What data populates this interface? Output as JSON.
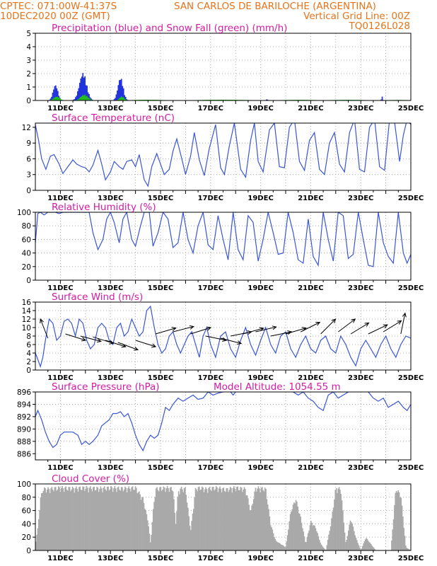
{
  "header": {
    "left_line1": "CPTEC:  071:00W-41:37S",
    "location": "SAN CARLOS DE BARILOCHE (ARGENTINA)",
    "left_line2": "10DEC2020 00Z (GMT)",
    "grid_note": "Vertical Grid Line: 00Z",
    "code": "TQ0126L028"
  },
  "colors": {
    "header": "#e8731a",
    "title": "#d61aa5",
    "line": "#3a55d6",
    "precip": "#2233dd",
    "snow": "#22bb22",
    "cloud": "#a9a9a9",
    "arrow": "#000000"
  },
  "chart_data": [
    {
      "id": "precipitation",
      "type": "bar",
      "title": "Precipitation (blue) and Snow Fall (green) (mm/h)",
      "ylim": [
        0,
        5
      ],
      "yticks": [
        "0",
        "1",
        "2",
        "3",
        "4",
        "5"
      ],
      "xticks": [
        "11DEC",
        "13DEC",
        "15DEC",
        "17DEC",
        "19DEC",
        "21DEC",
        "23DEC",
        "25DEC"
      ],
      "series": [
        {
          "name": "Precipitation (blue)",
          "peaks": [
            [
              0.8,
              0.2,
              1.2
            ],
            [
              1.9,
              0.3,
              2.1
            ],
            [
              3.4,
              0.22,
              1.75
            ],
            [
              9.25,
              0.06,
              0.1
            ],
            [
              13.85,
              0.05,
              0.3
            ]
          ]
        },
        {
          "name": "Snow Fall (green)",
          "peaks": [
            [
              0.85,
              0.25,
              0.3
            ],
            [
              1.95,
              0.3,
              0.45
            ],
            [
              3.45,
              0.2,
              0.3
            ],
            [
              4.5,
              1.2,
              0.06
            ],
            [
              7.5,
              2.0,
              0.06
            ],
            [
              10.5,
              1.5,
              0.05
            ],
            [
              12.5,
              1.5,
              0.05
            ],
            [
              14.5,
              1.2,
              0.04
            ]
          ]
        }
      ]
    },
    {
      "id": "temperature",
      "type": "line",
      "title": "Surface Temperature (nC)",
      "ylim": [
        0,
        12.8
      ],
      "yticks": [
        "0",
        "3",
        "6",
        "9",
        "12"
      ],
      "xticks": [
        "11DEC",
        "13DEC",
        "15DEC",
        "17DEC",
        "19DEC",
        "21DEC",
        "23DEC",
        "25DEC"
      ],
      "t": [
        0,
        0.13,
        0.25,
        0.42,
        0.6,
        0.75,
        0.95,
        1.1,
        1.3,
        1.5,
        1.65,
        1.85,
        2.0,
        2.15,
        2.3,
        2.5,
        2.65,
        2.8,
        3.0,
        3.15,
        3.35,
        3.5,
        3.65,
        3.85,
        4.0,
        4.15,
        4.35,
        4.5,
        4.65,
        4.85,
        5.0,
        5.15,
        5.35,
        5.5,
        5.65,
        5.85,
        6.0,
        6.2,
        6.35,
        6.55,
        6.75,
        6.95,
        7.2,
        7.4,
        7.55,
        7.75,
        7.95,
        8.2,
        8.4,
        8.6,
        8.75,
        8.9,
        9.1,
        9.35,
        9.55,
        9.75,
        9.95,
        10.15,
        10.35,
        10.55,
        10.75,
        10.95,
        11.15,
        11.35,
        11.55,
        11.75,
        11.95,
        12.15,
        12.35,
        12.55,
        12.75,
        12.95,
        13.15,
        13.35,
        13.55,
        13.75,
        13.95,
        14.15,
        14.35,
        14.55,
        14.7,
        14.85,
        15.0
      ],
      "values": [
        12.5,
        9.5,
        6.0,
        4.0,
        6.5,
        6.8,
        5.0,
        3.2,
        4.5,
        5.8,
        5.0,
        4.5,
        4.3,
        3.5,
        4.8,
        7.6,
        5.0,
        2.0,
        3.5,
        5.5,
        4.5,
        4.0,
        5.5,
        5.8,
        4.5,
        6.8,
        2.0,
        0.8,
        4.5,
        7.0,
        5.0,
        3.0,
        4.0,
        7.5,
        9.8,
        6.0,
        3.0,
        6.5,
        11.0,
        5.8,
        2.8,
        8.0,
        12.5,
        4.3,
        3.0,
        8.5,
        12.8,
        4.0,
        2.5,
        9.5,
        12.8,
        5.5,
        3.5,
        11.5,
        12.8,
        4.5,
        4.3,
        12.0,
        13.5,
        5.5,
        3.8,
        9.5,
        11.0,
        4.0,
        3.0,
        9.0,
        11.0,
        5.0,
        3.5,
        11.0,
        13.5,
        4.0,
        3.5,
        12.0,
        13.5,
        4.5,
        3.8,
        13.5,
        13.0,
        5.5,
        10.5,
        13.5,
        12.5
      ]
    },
    {
      "id": "humidity",
      "type": "line",
      "title": "Relative Humidity (%)",
      "ylim": [
        0,
        100
      ],
      "yticks": [
        "0",
        "20",
        "40",
        "60",
        "80",
        "100"
      ],
      "xticks": [
        "11DEC",
        "13DEC",
        "15DEC",
        "17DEC",
        "19DEC",
        "21DEC",
        "23DEC",
        "25DEC"
      ],
      "t": [
        0,
        0.1,
        0.2,
        0.35,
        0.5,
        0.65,
        0.8,
        0.95,
        1.1,
        1.25,
        1.4,
        1.55,
        1.7,
        1.85,
        2.0,
        2.15,
        2.3,
        2.5,
        2.7,
        2.85,
        3.0,
        3.15,
        3.35,
        3.5,
        3.65,
        3.85,
        4.0,
        4.2,
        4.35,
        4.55,
        4.7,
        4.9,
        5.1,
        5.3,
        5.5,
        5.7,
        5.9,
        6.1,
        6.3,
        6.5,
        6.7,
        6.9,
        7.1,
        7.3,
        7.5,
        7.7,
        7.9,
        8.1,
        8.3,
        8.5,
        8.7,
        8.9,
        9.1,
        9.3,
        9.5,
        9.7,
        9.9,
        10.1,
        10.3,
        10.5,
        10.7,
        10.9,
        11.1,
        11.3,
        11.5,
        11.7,
        11.9,
        12.1,
        12.3,
        12.5,
        12.7,
        12.9,
        13.1,
        13.3,
        13.5,
        13.7,
        13.9,
        14.1,
        14.3,
        14.5,
        14.7,
        14.85,
        15.0
      ],
      "values": [
        55,
        98,
        100,
        96,
        100,
        100,
        100,
        98,
        100,
        100,
        100,
        100,
        100,
        100,
        100,
        100,
        70,
        45,
        60,
        90,
        100,
        85,
        55,
        90,
        100,
        60,
        50,
        80,
        100,
        100,
        50,
        70,
        100,
        90,
        48,
        55,
        100,
        60,
        40,
        80,
        100,
        52,
        45,
        95,
        60,
        30,
        100,
        45,
        30,
        95,
        85,
        28,
        60,
        100,
        70,
        38,
        40,
        100,
        70,
        30,
        25,
        90,
        35,
        22,
        100,
        60,
        28,
        100,
        95,
        32,
        38,
        100,
        60,
        22,
        20,
        100,
        55,
        35,
        25,
        100,
        40,
        25,
        38
      ]
    },
    {
      "id": "wind",
      "type": "line",
      "title": "Surface Wind (m/s)",
      "ylim": [
        0,
        16
      ],
      "yticks": [
        "0",
        "2",
        "4",
        "6",
        "8",
        "10",
        "12",
        "14",
        "16"
      ],
      "xticks": [
        "11DEC",
        "13DEC",
        "15DEC",
        "17DEC",
        "19DEC",
        "21DEC",
        "23DEC",
        "25DEC"
      ],
      "t": [
        0,
        0.1,
        0.2,
        0.3,
        0.4,
        0.55,
        0.7,
        0.85,
        1.0,
        1.15,
        1.3,
        1.45,
        1.6,
        1.75,
        1.9,
        2.05,
        2.2,
        2.35,
        2.5,
        2.65,
        2.8,
        2.95,
        3.1,
        3.25,
        3.4,
        3.55,
        3.7,
        3.85,
        4.0,
        4.15,
        4.3,
        4.45,
        4.6,
        4.75,
        4.9,
        5.05,
        5.2,
        5.35,
        5.5,
        5.65,
        5.8,
        5.95,
        6.1,
        6.25,
        6.4,
        6.55,
        6.7,
        6.85,
        7.0,
        7.2,
        7.4,
        7.6,
        7.8,
        8.0,
        8.2,
        8.4,
        8.6,
        8.8,
        9.0,
        9.2,
        9.4,
        9.6,
        9.8,
        10.0,
        10.2,
        10.4,
        10.6,
        10.8,
        11.0,
        11.2,
        11.4,
        11.6,
        11.8,
        12.0,
        12.2,
        12.4,
        12.6,
        12.8,
        13.0,
        13.2,
        13.4,
        13.6,
        13.8,
        14.0,
        14.2,
        14.4,
        14.6,
        14.8,
        15.0
      ],
      "values": [
        4,
        2.5,
        0.8,
        3,
        7,
        12,
        11,
        7,
        8,
        11.5,
        12,
        11,
        8,
        12,
        11,
        7,
        5,
        6,
        10,
        11,
        10,
        7,
        6,
        10,
        11,
        8,
        9,
        12,
        10,
        8,
        9,
        14,
        15,
        10,
        6,
        4,
        5,
        8,
        9,
        6,
        4,
        6,
        8,
        9,
        6,
        3,
        8,
        10,
        6,
        3,
        8,
        9,
        5,
        3,
        7,
        10,
        6,
        3.5,
        7,
        10,
        6,
        4,
        8,
        9,
        5,
        3,
        6,
        8,
        5,
        4,
        7,
        8,
        5,
        4,
        8,
        6,
        3,
        1,
        5,
        7,
        5,
        3,
        6,
        8,
        5,
        3,
        6,
        8,
        7.5
      ],
      "arrows": [
        [
          0.5,
          7.5,
          -0.35,
          0.9
        ],
        [
          1.2,
          8.5,
          0.95,
          -0.3
        ],
        [
          1.8,
          8.0,
          0.97,
          -0.25
        ],
        [
          2.3,
          7.8,
          0.96,
          -0.3
        ],
        [
          2.8,
          7.0,
          0.95,
          -0.3
        ],
        [
          3.3,
          6.5,
          0.94,
          -0.35
        ],
        [
          4.0,
          7.0,
          0.95,
          -0.3
        ],
        [
          4.8,
          8.5,
          0.96,
          0.28
        ],
        [
          5.5,
          9.0,
          0.97,
          0.25
        ],
        [
          6.2,
          8.5,
          0.95,
          0.3
        ],
        [
          6.8,
          8.0,
          0.98,
          -0.2
        ],
        [
          7.4,
          7.5,
          0.97,
          -0.25
        ],
        [
          7.8,
          8.0,
          0.98,
          0.2
        ],
        [
          8.3,
          8.5,
          0.96,
          0.27
        ],
        [
          8.8,
          9.0,
          0.97,
          0.23
        ],
        [
          9.4,
          8.0,
          0.98,
          0.2
        ],
        [
          10.0,
          8.5,
          0.96,
          0.28
        ],
        [
          10.6,
          9.0,
          0.9,
          0.45
        ],
        [
          11.4,
          8.5,
          0.7,
          0.7
        ],
        [
          12.1,
          9.0,
          0.8,
          0.6
        ],
        [
          12.6,
          8.5,
          0.85,
          0.52
        ],
        [
          13.3,
          8.5,
          0.9,
          0.43
        ],
        [
          13.9,
          9.0,
          0.85,
          0.52
        ],
        [
          14.6,
          8.5,
          0.2,
          0.98
        ]
      ]
    },
    {
      "id": "pressure",
      "type": "line",
      "title": "Surface Pressure (hPa)",
      "annotation": "Model Altitude: 1054.55 m",
      "ylim": [
        885,
        896
      ],
      "yticks": [
        "886",
        "888",
        "890",
        "892",
        "894",
        "896"
      ],
      "xticks": [
        "11DEC",
        "13DEC",
        "15DEC",
        "17DEC",
        "19DEC",
        "21DEC",
        "23DEC",
        "25DEC"
      ],
      "t": [
        0,
        0.1,
        0.25,
        0.4,
        0.55,
        0.7,
        0.85,
        1.0,
        1.15,
        1.3,
        1.5,
        1.7,
        1.85,
        2.0,
        2.15,
        2.3,
        2.5,
        2.65,
        2.8,
        2.95,
        3.1,
        3.25,
        3.4,
        3.55,
        3.7,
        3.85,
        4.0,
        4.15,
        4.3,
        4.45,
        4.6,
        4.75,
        4.9,
        5.05,
        5.2,
        5.35,
        5.5,
        5.7,
        5.9,
        6.1,
        6.3,
        6.5,
        6.7,
        6.9,
        7.1,
        7.3,
        7.5,
        7.7,
        7.9,
        8.1,
        8.3,
        8.5,
        8.7,
        8.9,
        9.1,
        9.3,
        9.5,
        9.7,
        9.9,
        10.1,
        10.3,
        10.5,
        10.7,
        10.9,
        11.1,
        11.3,
        11.5,
        11.7,
        11.9,
        12.1,
        12.3,
        12.5,
        12.7,
        12.9,
        13.1,
        13.3,
        13.5,
        13.7,
        13.9,
        14.1,
        14.3,
        14.5,
        14.7,
        14.85,
        15.0
      ],
      "values": [
        892,
        893,
        891.5,
        889.5,
        888,
        887,
        887.5,
        889,
        889.5,
        889.5,
        889.5,
        889,
        887.5,
        888,
        887.5,
        888,
        889,
        890.5,
        891,
        891.5,
        892.5,
        892.5,
        892.8,
        892,
        892.5,
        891,
        889,
        887.5,
        886.5,
        888,
        889,
        888.5,
        889,
        891,
        893.5,
        893,
        894,
        895,
        894.5,
        895,
        895.5,
        894.8,
        895,
        896,
        895.5,
        895.8,
        896,
        896.5,
        895.5,
        896.5,
        896,
        897,
        896.5,
        896,
        897,
        896.5,
        897,
        897,
        897,
        897,
        896,
        895.5,
        896,
        895,
        894.5,
        893.5,
        893,
        895.5,
        896,
        895,
        895.5,
        896,
        897,
        897,
        896.5,
        896,
        895,
        894.5,
        895,
        893.5,
        894,
        894.5,
        893.5,
        893,
        894
      ]
    },
    {
      "id": "cloud",
      "type": "area",
      "title": "Cloud Cover (%)",
      "ylim": [
        0,
        100
      ],
      "yticks": [
        "0",
        "20",
        "40",
        "60",
        "80",
        "100"
      ],
      "xticks": [
        "11DEC",
        "13DEC",
        "15DEC",
        "17DEC",
        "19DEC",
        "21DEC",
        "23DEC",
        "25DEC"
      ],
      "t": [
        0,
        0.1,
        0.2,
        0.3,
        0.5,
        1.0,
        1.5,
        2.0,
        2.5,
        3.0,
        3.5,
        4.0,
        4.3,
        4.5,
        4.6,
        4.7,
        4.8,
        5.0,
        5.3,
        5.5,
        5.6,
        5.7,
        5.8,
        6.0,
        6.2,
        6.4,
        6.6,
        6.8,
        7.0,
        7.2,
        7.4,
        7.6,
        7.8,
        8.0,
        8.2,
        8.4,
        8.6,
        8.8,
        9.0,
        9.2,
        9.4,
        9.6,
        9.8,
        10.0,
        10.2,
        10.4,
        10.6,
        10.8,
        11.0,
        11.2,
        11.4,
        11.6,
        11.8,
        12.0,
        12.2,
        12.4,
        12.6,
        12.8,
        13.0,
        13.2,
        13.4,
        13.6,
        13.8,
        14.0,
        14.2,
        14.4,
        14.6,
        14.8,
        15.0
      ],
      "values": [
        10,
        35,
        80,
        95,
        95,
        97,
        96,
        97,
        96,
        97,
        96,
        97,
        80,
        45,
        10,
        60,
        95,
        96,
        97,
        95,
        40,
        90,
        96,
        95,
        30,
        96,
        97,
        95,
        96,
        97,
        96,
        94,
        96,
        97,
        96,
        95,
        60,
        97,
        96,
        95,
        40,
        15,
        10,
        5,
        60,
        80,
        50,
        10,
        45,
        35,
        10,
        0,
        40,
        96,
        95,
        10,
        50,
        20,
        0,
        20,
        10,
        0,
        0,
        0,
        0,
        96,
        85,
        5,
        0
      ]
    }
  ]
}
